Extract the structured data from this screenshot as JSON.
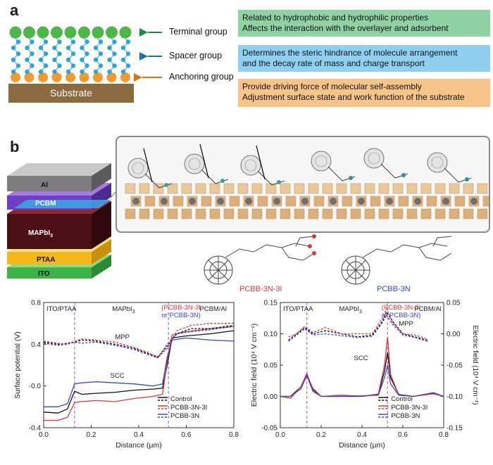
{
  "panel_a": {
    "letter": "a",
    "substrate_label": "Substrate",
    "labels": {
      "terminal": "Terminal group",
      "spacer": "Spacer group",
      "anchoring": "Anchoring group"
    },
    "boxes": [
      {
        "line1": "Related to hydrophobic and hydrophilic properties",
        "line2": "Affects the interaction with the overlayer and adsorbent",
        "color": "#8fd3a2"
      },
      {
        "line1": "Determines the steric hindrance of molecule arrangement",
        "line2": "and the decay rate of mass and charge transport",
        "color": "#8fd0f0"
      },
      {
        "line1": "Provide driving force of molecular self-assembly",
        "line2": "Adjustment surface state and work function of the substrate",
        "color": "#f7c48a"
      }
    ],
    "colors": {
      "terminal": "#4cb849",
      "spacer": "#2aa4dc",
      "anchoring": "#f29a2e",
      "substrate": "#8a6a3f"
    }
  },
  "panel_b": {
    "letter": "b",
    "stack_layers": [
      "Al",
      "PCBM",
      "MAPbI",
      "PTAA",
      "ITO"
    ],
    "stack_sub": "3",
    "molecules": [
      {
        "name": "PCBB-3N-3I",
        "color": "#d83a3a"
      },
      {
        "name": "PCBB-3N",
        "color": "#3a46c8"
      }
    ]
  },
  "chart_data": [
    {
      "type": "line",
      "ylabel": "Surface potential (V)",
      "xlabel": "Distance (µm)",
      "xlim": [
        0.0,
        0.8
      ],
      "ylim": [
        -0.4,
        0.8
      ],
      "xticks": [
        "0.0",
        "0.2",
        "0.4",
        "0.6",
        "0.8"
      ],
      "yticks": [
        "-0.4",
        "-0.0",
        "0.4",
        "0.8"
      ],
      "region_labels": [
        "ITO/PTAA",
        "MAPbI",
        "(PCBB-3N-3I",
        "or PCBB-3N)",
        "PCBM/Al"
      ],
      "annotations": [
        "MPP",
        "SCC"
      ],
      "interfaces_x": [
        0.13,
        0.525
      ],
      "legend": [
        "Control",
        "PCBB-3N-3I",
        "PCBB-3N"
      ],
      "series": [
        {
          "name": "Control",
          "color": "#111111",
          "x": [
            0.0,
            0.06,
            0.1,
            0.13,
            0.16,
            0.22,
            0.3,
            0.38,
            0.46,
            0.5,
            0.52,
            0.54,
            0.6,
            0.7,
            0.8
          ],
          "y": [
            -0.25,
            -0.26,
            -0.22,
            -0.05,
            -0.08,
            -0.07,
            -0.06,
            -0.04,
            -0.03,
            -0.02,
            0.2,
            0.46,
            0.48,
            0.5,
            0.53
          ]
        },
        {
          "name": "PCBB-3N-3I",
          "color": "#d83a3a",
          "x": [
            0.0,
            0.06,
            0.1,
            0.13,
            0.16,
            0.22,
            0.3,
            0.38,
            0.46,
            0.5,
            0.52,
            0.54,
            0.6,
            0.7,
            0.8
          ],
          "y": [
            -0.33,
            -0.33,
            -0.3,
            -0.16,
            -0.15,
            -0.14,
            -0.15,
            -0.12,
            -0.1,
            -0.08,
            0.24,
            0.49,
            0.52,
            0.55,
            0.57
          ]
        },
        {
          "name": "PCBB-3N",
          "color": "#3a46c8",
          "x": [
            0.0,
            0.06,
            0.1,
            0.13,
            0.16,
            0.22,
            0.3,
            0.38,
            0.46,
            0.5,
            0.52,
            0.54,
            0.6,
            0.7,
            0.8
          ],
          "y": [
            -0.2,
            -0.2,
            -0.17,
            0.02,
            0.03,
            0.04,
            0.03,
            0.02,
            0.0,
            0.02,
            0.28,
            0.44,
            0.46,
            0.44,
            0.43
          ]
        },
        {
          "name": "Control MPP",
          "color": "#111111",
          "dashed": true,
          "x": [
            0.0,
            0.06,
            0.1,
            0.13,
            0.16,
            0.22,
            0.3,
            0.38,
            0.44,
            0.48,
            0.52,
            0.56,
            0.62,
            0.7,
            0.8
          ],
          "y": [
            0.42,
            0.4,
            0.41,
            0.42,
            0.44,
            0.43,
            0.4,
            0.36,
            0.31,
            0.28,
            0.38,
            0.5,
            0.55,
            0.55,
            0.58
          ]
        },
        {
          "name": "PCBB-3N-3I MPP",
          "color": "#d83a3a",
          "dashed": true,
          "x": [
            0.0,
            0.06,
            0.1,
            0.13,
            0.16,
            0.22,
            0.3,
            0.38,
            0.44,
            0.48,
            0.52,
            0.56,
            0.62,
            0.7,
            0.8
          ],
          "y": [
            0.43,
            0.41,
            0.4,
            0.43,
            0.45,
            0.44,
            0.42,
            0.37,
            0.32,
            0.27,
            0.36,
            0.53,
            0.58,
            0.6,
            0.6
          ]
        },
        {
          "name": "PCBB-3N MPP",
          "color": "#3a46c8",
          "dashed": true,
          "x": [
            0.0,
            0.06,
            0.1,
            0.13,
            0.16,
            0.22,
            0.3,
            0.38,
            0.44,
            0.48,
            0.52,
            0.56,
            0.62,
            0.7,
            0.8
          ],
          "y": [
            0.41,
            0.39,
            0.4,
            0.42,
            0.41,
            0.42,
            0.39,
            0.35,
            0.3,
            0.27,
            0.4,
            0.5,
            0.52,
            0.54,
            0.57
          ]
        }
      ]
    },
    {
      "type": "line",
      "ylabel": "Electric field (10⁴ V cm⁻¹)",
      "ylabel_right": "Electric field (10⁴ V cm⁻¹)",
      "xlabel": "Distance (µm)",
      "xlim": [
        0.0,
        0.8
      ],
      "ylim": [
        -0.05,
        0.15
      ],
      "ylim_right": [
        -0.15,
        0.05
      ],
      "xticks": [
        "0.0",
        "0.2",
        "0.4",
        "0.6",
        "0.8"
      ],
      "yticks": [
        "-0.05",
        "0.00",
        "0.05",
        "0.10",
        "0.15"
      ],
      "yticks_right": [
        "-0.15",
        "-0.10",
        "-0.05",
        "0.00",
        "0.05"
      ],
      "region_labels": [
        "ITO/PTAA",
        "MAPbI",
        "(PCBB-3N-3I",
        "or PCBB-3N)",
        "PCBM/Al"
      ],
      "annotations": [
        "MPP",
        "SCC"
      ],
      "interfaces_x": [
        0.13,
        0.525
      ],
      "legend": [
        "Control",
        "PCBB-3N-3I",
        "PCBB-3N"
      ],
      "series": [
        {
          "name": "Control",
          "color": "#111111",
          "x": [
            0.0,
            0.05,
            0.1,
            0.13,
            0.16,
            0.2,
            0.3,
            0.4,
            0.48,
            0.51,
            0.525,
            0.54,
            0.58,
            0.65,
            0.75,
            0.8
          ],
          "y": [
            0.0,
            0.0,
            0.015,
            0.035,
            0.012,
            0.0,
            0.0,
            0.0,
            0.003,
            0.04,
            0.07,
            0.03,
            0.003,
            0.0,
            0.005,
            0.0
          ]
        },
        {
          "name": "PCBB-3N-3I",
          "color": "#d83a3a",
          "x": [
            0.0,
            0.05,
            0.1,
            0.13,
            0.16,
            0.2,
            0.3,
            0.4,
            0.48,
            0.51,
            0.525,
            0.54,
            0.58,
            0.65,
            0.75,
            0.8
          ],
          "y": [
            0.0,
            -0.003,
            0.015,
            0.037,
            0.01,
            0.0,
            0.002,
            0.0,
            0.004,
            0.05,
            0.095,
            0.035,
            0.002,
            0.0,
            0.004,
            0.0
          ]
        },
        {
          "name": "PCBB-3N",
          "color": "#3a46c8",
          "x": [
            0.0,
            0.05,
            0.1,
            0.13,
            0.16,
            0.2,
            0.3,
            0.4,
            0.48,
            0.51,
            0.525,
            0.54,
            0.58,
            0.65,
            0.75,
            0.8
          ],
          "y": [
            0.0,
            0.0,
            0.012,
            0.033,
            0.008,
            0.0,
            0.0,
            0.001,
            0.002,
            0.03,
            0.05,
            0.02,
            0.002,
            0.0,
            0.006,
            0.0
          ]
        },
        {
          "name": "Control MPP",
          "color": "#111111",
          "dashed": true,
          "x": [
            0.04,
            0.08,
            0.12,
            0.16,
            0.22,
            0.3,
            0.38,
            0.45,
            0.5,
            0.52,
            0.55,
            0.6,
            0.66,
            0.72
          ],
          "y": [
            0.09,
            0.1,
            0.11,
            0.1,
            0.105,
            0.1,
            0.095,
            0.098,
            0.12,
            0.135,
            0.12,
            0.1,
            0.095,
            0.09
          ]
        },
        {
          "name": "PCBB-3N-3I MPP",
          "color": "#d83a3a",
          "dashed": true,
          "x": [
            0.04,
            0.08,
            0.12,
            0.16,
            0.22,
            0.3,
            0.38,
            0.45,
            0.5,
            0.52,
            0.55,
            0.6,
            0.66,
            0.72
          ],
          "y": [
            0.095,
            0.1,
            0.112,
            0.102,
            0.11,
            0.1,
            0.1,
            0.1,
            0.125,
            0.14,
            0.118,
            0.1,
            0.098,
            0.092
          ]
        },
        {
          "name": "PCBB-3N MPP",
          "color": "#3a46c8",
          "dashed": true,
          "x": [
            0.04,
            0.08,
            0.12,
            0.16,
            0.22,
            0.3,
            0.38,
            0.45,
            0.5,
            0.52,
            0.55,
            0.6,
            0.66,
            0.72
          ],
          "y": [
            0.088,
            0.098,
            0.108,
            0.098,
            0.1,
            0.097,
            0.094,
            0.096,
            0.118,
            0.13,
            0.115,
            0.098,
            0.094,
            0.088
          ]
        }
      ]
    }
  ]
}
